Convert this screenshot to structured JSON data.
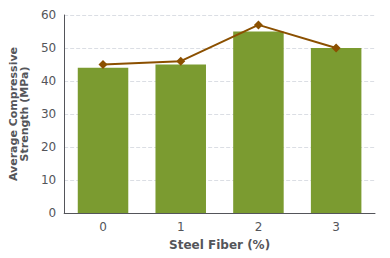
{
  "chart_data": {
    "type": "bar",
    "xlabel": "Steel Fiber (%)",
    "ylabel": "Average Compressive\nStrength (MPa)",
    "categories": [
      "0",
      "1",
      "2",
      "3"
    ],
    "series": [
      {
        "type": "bar",
        "color": "#7B9B30",
        "values": [
          44,
          45,
          55,
          50
        ]
      },
      {
        "type": "line",
        "color": "#8B5000",
        "marker": "diamond",
        "values": [
          45,
          46,
          57,
          50
        ]
      }
    ],
    "ylim": [
      0,
      60
    ],
    "yticks": [
      0,
      10,
      20,
      30,
      40,
      50,
      60
    ],
    "grid": true
  }
}
